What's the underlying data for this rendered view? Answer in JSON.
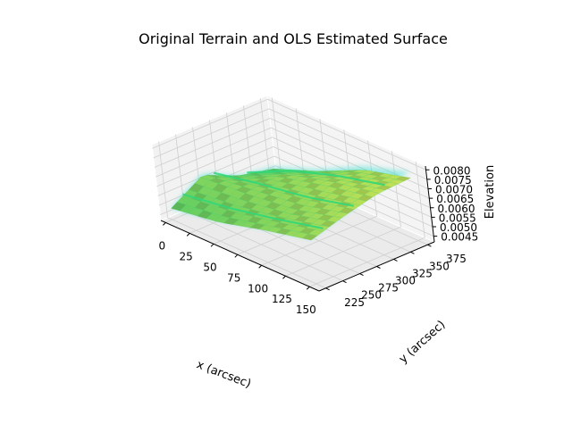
{
  "chart_data": {
    "type": "surface3d",
    "title": "Original Terrain and OLS Estimated Surface",
    "xlabel": "x (arcsec)",
    "ylabel": "y (arcsec)",
    "zlabel": "Elevation",
    "xlim": [
      -5,
      160
    ],
    "ylim": [
      215,
      385
    ],
    "zlim": [
      0.0042,
      0.0082
    ],
    "x_ticks": [
      0,
      25,
      50,
      75,
      100,
      125,
      150
    ],
    "y_ticks": [
      225,
      250,
      275,
      300,
      325,
      350,
      375
    ],
    "z_ticks": [
      0.0045,
      0.005,
      0.0055,
      0.006,
      0.0065,
      0.007,
      0.0075,
      0.008
    ],
    "x_tick_labels": [
      "0",
      "25",
      "50",
      "75",
      "100",
      "125",
      "150"
    ],
    "y_tick_labels": [
      "225",
      "250",
      "275",
      "300",
      "325",
      "350",
      "375"
    ],
    "z_tick_labels": [
      "0.0045",
      "0.0050",
      "0.0055",
      "0.0060",
      "0.0065",
      "0.0070",
      "0.0075",
      "0.0080"
    ],
    "grid": true,
    "series": [
      {
        "kind": "terrain",
        "color": "#40e0d0",
        "x": [
          0,
          50,
          100,
          150
        ],
        "y": [
          225,
          275,
          325,
          375
        ],
        "z": [
          [
            0.0048,
            0.0053,
            0.006,
            0.0066
          ],
          [
            0.0059,
            0.0061,
            0.0064,
            0.0071
          ],
          [
            0.005,
            0.0063,
            0.007,
            0.0076
          ],
          [
            0.0047,
            0.0057,
            0.007,
            0.0078
          ]
        ]
      },
      {
        "kind": "ols_estimated_surface",
        "color": "#8ee06a",
        "x": [
          0,
          50,
          100,
          150
        ],
        "y": [
          225,
          275,
          325,
          375
        ],
        "z": [
          [
            0.0048,
            0.0052,
            0.0059,
            0.0065
          ],
          [
            0.0058,
            0.006,
            0.0063,
            0.007
          ],
          [
            0.005,
            0.0062,
            0.0069,
            0.0074
          ],
          [
            0.0046,
            0.0056,
            0.0068,
            0.0075
          ]
        ]
      }
    ]
  }
}
